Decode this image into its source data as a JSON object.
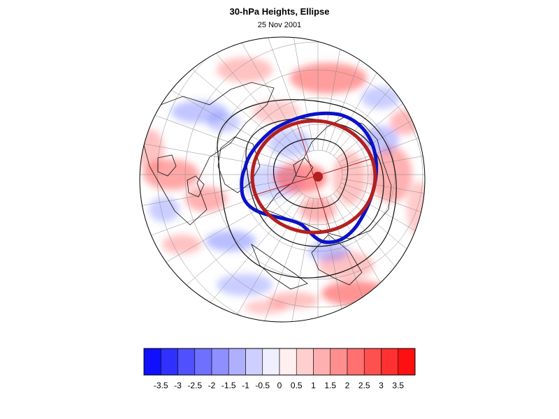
{
  "title": "30-hPa Heights, Ellipse",
  "subtitle": "25 Nov 2001",
  "colorbar": {
    "tick_labels": [
      "-3.5",
      "-3",
      "-2.5",
      "-2",
      "-1.5",
      "-1",
      "-0.5",
      "0",
      "0.5",
      "1",
      "1.5",
      "2",
      "2.5",
      "3",
      "3.5"
    ],
    "min_color": "#1010ff",
    "mid_color": "#ffffff",
    "max_color": "#ff1010"
  },
  "map": {
    "projection": "orthographic-polar",
    "colors": {
      "ocean": "#ffffff",
      "positive_anomaly": "#ff4d4d",
      "negative_anomaly": "#4d5cff",
      "vortex_edge": "#0b12c8",
      "fitted_ellipse": "#b3201f",
      "centroid": "#b3201f",
      "contours": "#111111",
      "coastlines": "#111111",
      "graticule": "#8a8a8a"
    }
  }
}
